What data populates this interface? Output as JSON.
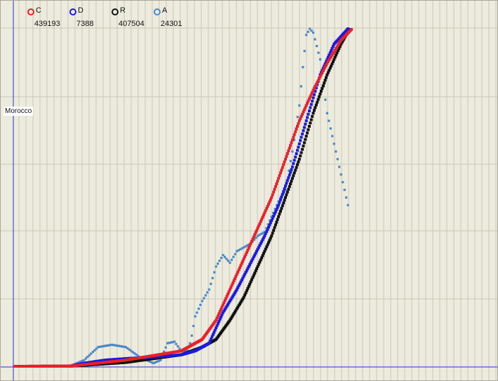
{
  "chart_data": {
    "type": "scatter",
    "title": "",
    "country_label": "Morocco",
    "xlabel": "",
    "ylabel": "",
    "grid": true,
    "legend_position": "top-left",
    "x_range": [
      0,
      490
    ],
    "y_range": [
      0,
      440000
    ],
    "colors": {
      "background": "#ecebdd",
      "grid": "#c8c7b8",
      "axis": "#2b2bd6"
    },
    "series": [
      {
        "name": "C",
        "value": "439193",
        "color": "#e8202a",
        "x": [
          0,
          80,
          160,
          240,
          270,
          290,
          310,
          330,
          350,
          370,
          390,
          410,
          430,
          450,
          470,
          485
        ],
        "y": [
          0,
          200,
          8000,
          20000,
          35000,
          60000,
          100000,
          140000,
          180000,
          220000,
          270000,
          320000,
          360000,
          395000,
          425000,
          439193
        ]
      },
      {
        "name": "D",
        "value": "7388",
        "color": "#1a1adf",
        "x": [
          0,
          80,
          100,
          130,
          160,
          200,
          240,
          260,
          280,
          290,
          300,
          320,
          340,
          360,
          380,
          400,
          420,
          440,
          460,
          480
        ],
        "y": [
          0,
          50,
          4000,
          8000,
          10000,
          12000,
          15000,
          20000,
          30000,
          50000,
          70000,
          100000,
          135000,
          170000,
          210000,
          260000,
          320000,
          380000,
          420000,
          440000
        ]
      },
      {
        "name": "R",
        "value": "407504",
        "color": "#111111",
        "x": [
          0,
          80,
          160,
          240,
          270,
          290,
          310,
          330,
          350,
          370,
          390,
          410,
          430,
          450,
          470,
          482
        ],
        "y": [
          0,
          100,
          5000,
          15000,
          25000,
          35000,
          60000,
          90000,
          130000,
          170000,
          220000,
          270000,
          330000,
          380000,
          420000,
          439193
        ]
      },
      {
        "name": "A",
        "value": "24301",
        "color": "#4a88c8",
        "x": [
          0,
          80,
          100,
          120,
          140,
          160,
          180,
          200,
          210,
          220,
          230,
          240,
          250,
          255,
          260,
          265,
          270,
          280,
          290,
          300,
          310,
          320,
          330,
          340,
          350,
          360,
          370,
          380,
          390,
          400,
          410,
          415,
          420,
          425,
          430,
          440,
          450,
          460,
          470,
          480
        ],
        "y": [
          0,
          500,
          8000,
          25000,
          28000,
          25000,
          12000,
          4000,
          8000,
          30000,
          32000,
          20000,
          20000,
          40000,
          65000,
          75000,
          85000,
          100000,
          130000,
          145000,
          135000,
          150000,
          155000,
          160000,
          170000,
          175000,
          195000,
          215000,
          230000,
          280000,
          340000,
          390000,
          432000,
          440000,
          435000,
          400000,
          330000,
          290000,
          250000,
          210000
        ]
      }
    ]
  }
}
